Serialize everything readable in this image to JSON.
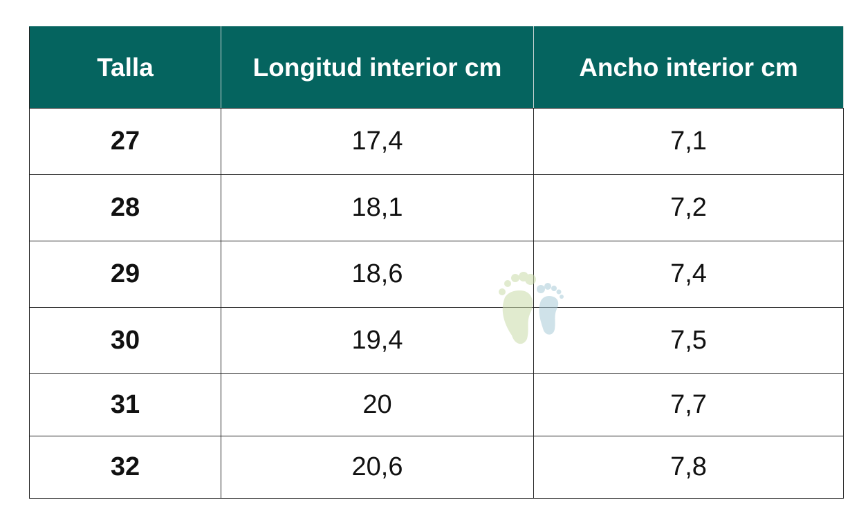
{
  "table": {
    "header": [
      "Talla",
      "Longitud interior cm",
      "Ancho interior cm"
    ],
    "rows": [
      [
        "27",
        "17,4",
        "7,1"
      ],
      [
        "28",
        "18,1",
        "7,2"
      ],
      [
        "29",
        "18,6",
        "7,4"
      ],
      [
        "30",
        "19,4",
        "7,5"
      ],
      [
        "31",
        "20",
        "7,7"
      ],
      [
        "32",
        "20,6",
        "7,8"
      ]
    ]
  }
}
